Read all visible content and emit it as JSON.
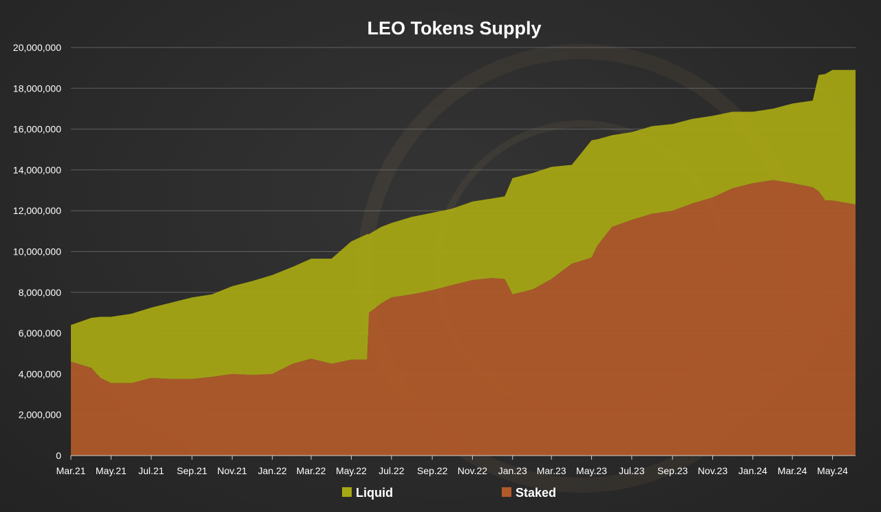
{
  "chart_data": {
    "type": "area",
    "title": "LEO Tokens Supply",
    "xlabel": "",
    "ylabel": "",
    "stacked": true,
    "legend_position": "bottom",
    "grid": true,
    "ylim": [
      0,
      20000000
    ],
    "yticks": [
      0,
      2000000,
      4000000,
      6000000,
      8000000,
      10000000,
      12000000,
      14000000,
      16000000,
      18000000,
      20000000
    ],
    "ytick_labels": [
      "0",
      "2,000,000",
      "4,000,000",
      "6,000,000",
      "8,000,000",
      "10,000,000",
      "12,000,000",
      "14,000,000",
      "16,000,000",
      "18,000,000",
      "20,000,000"
    ],
    "xlim": [
      "2021-03-01",
      "2024-06-05"
    ],
    "xticks": [
      "2021-03-01",
      "2021-05-01",
      "2021-07-01",
      "2021-09-01",
      "2021-11-01",
      "2022-01-01",
      "2022-03-01",
      "2022-05-01",
      "2022-07-01",
      "2022-09-01",
      "2022-11-01",
      "2023-01-01",
      "2023-03-01",
      "2023-05-01",
      "2023-07-01",
      "2023-09-01",
      "2023-11-01",
      "2024-01-01",
      "2024-03-01",
      "2024-05-01"
    ],
    "xtick_labels": [
      "Mar.21",
      "May.21",
      "Jul.21",
      "Sep.21",
      "Nov.21",
      "Jan.22",
      "Mar.22",
      "May.22",
      "Jul.22",
      "Sep.22",
      "Nov.22",
      "Jan.23",
      "Mar.23",
      "May.23",
      "Jul.23",
      "Sep.23",
      "Nov.23",
      "Jan.24",
      "Mar.24",
      "May.24"
    ],
    "x": [
      "2021-03-01",
      "2021-04-01",
      "2021-04-15",
      "2021-05-01",
      "2021-06-01",
      "2021-07-01",
      "2021-08-01",
      "2021-09-01",
      "2021-10-01",
      "2021-11-01",
      "2021-12-01",
      "2022-01-01",
      "2022-02-01",
      "2022-03-01",
      "2022-04-01",
      "2022-05-01",
      "2022-05-25",
      "2022-05-28",
      "2022-06-15",
      "2022-07-01",
      "2022-08-01",
      "2022-09-01",
      "2022-10-01",
      "2022-11-01",
      "2022-12-01",
      "2022-12-20",
      "2023-01-01",
      "2023-02-01",
      "2023-03-01",
      "2023-04-01",
      "2023-05-01",
      "2023-05-10",
      "2023-06-01",
      "2023-07-01",
      "2023-08-01",
      "2023-09-01",
      "2023-10-01",
      "2023-11-01",
      "2023-12-01",
      "2024-01-01",
      "2024-02-01",
      "2024-03-01",
      "2024-04-01",
      "2024-04-10",
      "2024-04-20",
      "2024-05-01",
      "2024-06-05"
    ],
    "series": [
      {
        "name": "Liquid",
        "color": "#a8a814",
        "values": [
          1800000,
          2450000,
          3000000,
          3250000,
          3400000,
          3450000,
          3750000,
          4000000,
          4050000,
          4300000,
          4600000,
          4850000,
          4750000,
          4900000,
          5150000,
          5800000,
          6150000,
          3850000,
          3750000,
          3650000,
          3800000,
          3800000,
          3750000,
          3850000,
          3900000,
          4050000,
          5700000,
          5700000,
          5500000,
          4850000,
          5750000,
          5200000,
          4500000,
          4300000,
          4300000,
          4250000,
          4150000,
          4000000,
          3750000,
          3500000,
          3500000,
          3900000,
          4250000,
          5700000,
          6200000,
          6400000,
          6600000
        ]
      },
      {
        "name": "Staked",
        "color": "#b15a2a",
        "values": [
          4600000,
          4300000,
          3800000,
          3550000,
          3550000,
          3800000,
          3750000,
          3750000,
          3850000,
          4000000,
          3950000,
          4000000,
          4500000,
          4750000,
          4500000,
          4700000,
          4700000,
          7000000,
          7450000,
          7750000,
          7900000,
          8100000,
          8350000,
          8600000,
          8700000,
          8650000,
          7900000,
          8150000,
          8650000,
          9400000,
          9700000,
          10300000,
          11200000,
          11550000,
          11850000,
          12000000,
          12350000,
          12650000,
          13100000,
          13350000,
          13500000,
          13350000,
          13150000,
          12950000,
          12500000,
          12500000,
          12300000
        ]
      }
    ]
  }
}
